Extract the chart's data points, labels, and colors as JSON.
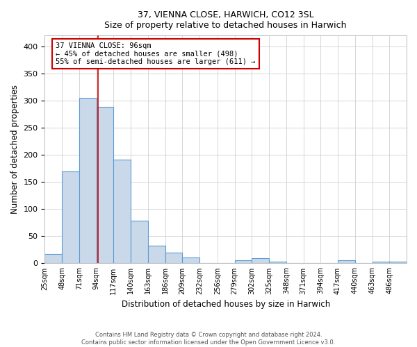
{
  "title": "37, VIENNA CLOSE, HARWICH, CO12 3SL",
  "subtitle": "Size of property relative to detached houses in Harwich",
  "xlabel": "Distribution of detached houses by size in Harwich",
  "ylabel": "Number of detached properties",
  "bin_edges": [
    25,
    48,
    71,
    94,
    117,
    140,
    163,
    186,
    209,
    232,
    256,
    279,
    302,
    325,
    348,
    371,
    394,
    417,
    440,
    463,
    486,
    509
  ],
  "bin_labels": [
    "25sqm",
    "48sqm",
    "71sqm",
    "94sqm",
    "117sqm",
    "140sqm",
    "163sqm",
    "186sqm",
    "209sqm",
    "232sqm",
    "256sqm",
    "279sqm",
    "302sqm",
    "325sqm",
    "348sqm",
    "371sqm",
    "394sqm",
    "417sqm",
    "440sqm",
    "463sqm",
    "486sqm"
  ],
  "counts": [
    17,
    169,
    305,
    288,
    191,
    79,
    32,
    20,
    11,
    0,
    0,
    6,
    10,
    3,
    0,
    0,
    0,
    6,
    0,
    3,
    3
  ],
  "bar_facecolor": "#c9d9ea",
  "bar_edgecolor": "#5b9bd5",
  "property_size": 96,
  "redline_color": "#cc0000",
  "ann_line1": "37 VIENNA CLOSE: 96sqm",
  "ann_line2": "← 45% of detached houses are smaller (498)",
  "ann_line3": "55% of semi-detached houses are larger (611) →",
  "annotation_box_edgecolor": "#cc0000",
  "ylim": [
    0,
    420
  ],
  "yticks": [
    0,
    50,
    100,
    150,
    200,
    250,
    300,
    350,
    400
  ],
  "grid_color": "#d0d0d0",
  "background_color": "#ffffff",
  "footer_line1": "Contains HM Land Registry data © Crown copyright and database right 2024.",
  "footer_line2": "Contains public sector information licensed under the Open Government Licence v3.0."
}
